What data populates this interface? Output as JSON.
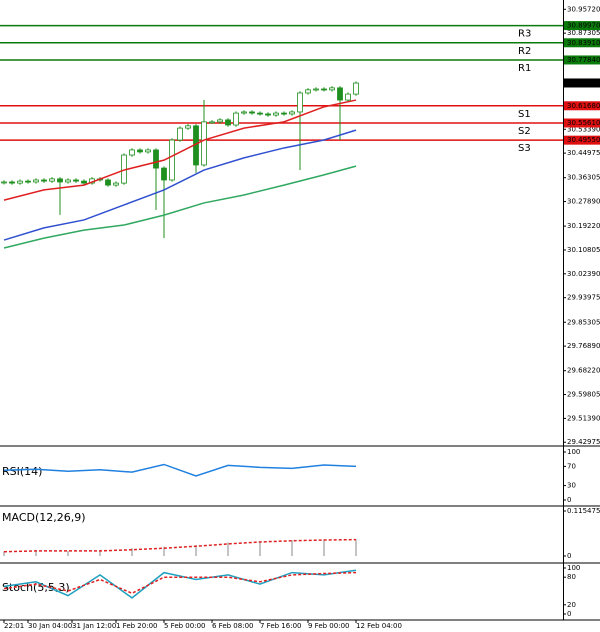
{
  "chart_data": [
    {
      "type": "candlestick",
      "xlim": [
        -0.5,
        69.875
      ],
      "ylim": [
        29.42,
        30.99
      ],
      "xticks": [
        {
          "value": 0,
          "label": "22:01"
        },
        {
          "value": 3,
          "label": "30 Jan 04:00"
        },
        {
          "value": 8.5,
          "label": "31 Jan 12:00"
        },
        {
          "value": 14,
          "label": "1 Feb 20:00"
        },
        {
          "value": 20,
          "label": "5 Feb 00:00"
        },
        {
          "value": 26,
          "label": "6 Feb 08:00"
        },
        {
          "value": 32,
          "label": "7 Feb 16:00"
        },
        {
          "value": 38,
          "label": "9 Feb 00:00"
        },
        {
          "value": 44,
          "label": "12 Feb 04:00"
        }
      ],
      "yticks": [
        {
          "value": 30.9572,
          "label": "30.95720"
        },
        30.87305,
        {
          "value": 30.5339,
          "label": "30.53390"
        },
        30.44975,
        30.36305,
        {
          "value": 30.2789,
          "label": "30.27890"
        },
        {
          "value": 30.1922,
          "label": "30.19220"
        },
        30.10805,
        {
          "value": 30.0239,
          "label": "30.02390"
        },
        29.93975,
        29.85305,
        {
          "value": 29.7689,
          "label": "29.76890"
        },
        {
          "value": 29.6822,
          "label": "29.68220"
        },
        29.59805,
        {
          "value": 29.5139,
          "label": "29.51390"
        },
        29.42975
      ],
      "colors": {
        "up": "#ffffff",
        "down": "#1f8f1f",
        "wick": "#1f8f1f"
      },
      "open": [
        30.345,
        30.348,
        30.344,
        30.351,
        30.348,
        30.355,
        30.351,
        30.359,
        30.348,
        30.355,
        30.351,
        30.344,
        30.359,
        30.355,
        30.337,
        30.344,
        30.443,
        30.461,
        30.454,
        30.461,
        30.397,
        30.355,
        30.496,
        30.538,
        30.546,
        30.408,
        30.56,
        30.56,
        30.567,
        30.549,
        30.591,
        30.595,
        30.591,
        30.588,
        30.584,
        30.591,
        30.588,
        30.595,
        30.662,
        30.673,
        30.676,
        30.673,
        30.68,
        30.637,
        30.658
      ],
      "high": [
        30.354,
        30.354,
        30.357,
        30.357,
        30.361,
        30.361,
        30.365,
        30.365,
        30.361,
        30.361,
        30.357,
        30.365,
        30.365,
        30.361,
        30.35,
        30.449,
        30.467,
        30.467,
        30.467,
        30.467,
        30.403,
        30.502,
        30.544,
        30.552,
        30.552,
        30.637,
        30.566,
        30.573,
        30.573,
        30.597,
        30.601,
        30.601,
        30.597,
        30.594,
        30.597,
        30.597,
        30.601,
        30.668,
        30.679,
        30.682,
        30.682,
        30.686,
        30.686,
        30.664,
        30.703
      ],
      "low": [
        30.339,
        30.338,
        30.338,
        30.342,
        30.342,
        30.345,
        30.345,
        30.232,
        30.342,
        30.345,
        30.338,
        30.338,
        30.349,
        30.331,
        30.331,
        30.338,
        30.437,
        30.448,
        30.448,
        30.249,
        30.15,
        30.349,
        30.49,
        30.532,
        30.38,
        30.402,
        30.554,
        30.554,
        30.543,
        30.543,
        30.585,
        30.585,
        30.582,
        30.578,
        30.578,
        30.582,
        30.582,
        30.39,
        30.656,
        30.667,
        30.667,
        30.667,
        30.496,
        30.631,
        30.652
      ],
      "close": [
        30.348,
        30.344,
        30.351,
        30.348,
        30.355,
        30.351,
        30.359,
        30.348,
        30.355,
        30.351,
        30.344,
        30.359,
        30.355,
        30.337,
        30.344,
        30.443,
        30.461,
        30.454,
        30.461,
        30.397,
        30.355,
        30.496,
        30.538,
        30.546,
        30.408,
        30.56,
        30.56,
        30.567,
        30.549,
        30.591,
        30.595,
        30.591,
        30.588,
        30.584,
        30.591,
        30.588,
        30.595,
        30.662,
        30.673,
        30.676,
        30.673,
        30.68,
        30.637,
        30.658,
        30.697
      ],
      "series": [
        {
          "color": "#e02020",
          "x": [
            0,
            5,
            10,
            15,
            20,
            25,
            30,
            35,
            40,
            44
          ],
          "values": [
            30.284,
            30.32,
            30.337,
            30.39,
            30.425,
            30.496,
            30.538,
            30.56,
            30.613,
            30.637
          ]
        },
        {
          "color": "#3050d0",
          "x": [
            0,
            5,
            10,
            15,
            20,
            25,
            30,
            35,
            40,
            44
          ],
          "values": [
            30.143,
            30.186,
            30.214,
            30.267,
            30.32,
            30.39,
            30.433,
            30.468,
            30.496,
            30.531
          ]
        },
        {
          "color": "#30a860",
          "x": [
            0,
            5,
            10,
            15,
            20,
            25,
            30,
            35,
            40,
            44
          ],
          "values": [
            30.115,
            30.15,
            30.178,
            30.196,
            30.231,
            30.274,
            30.302,
            30.337,
            30.373,
            30.404
          ]
        }
      ],
      "levels": [
        {
          "name": "R3",
          "value": 30.8997,
          "label": "30.89970",
          "color": "#0a7a0a"
        },
        {
          "name": "R2",
          "value": 30.8391,
          "label": "30.83910",
          "color": "#0a7a0a"
        },
        {
          "name": "R1",
          "value": 30.7784,
          "label": "30.77840",
          "color": "#0a7a0a"
        },
        {
          "name": "S1",
          "value": 30.6168,
          "label": "30.61680",
          "color": "#e01010"
        },
        {
          "name": "S2",
          "value": 30.5561,
          "label": "30.55610",
          "color": "#e01010"
        },
        {
          "name": "S3",
          "value": 30.4955,
          "label": "30.49550",
          "color": "#e01010"
        }
      ],
      "last_price": {
        "value": 30.69724,
        "label": "30.69724"
      }
    },
    {
      "type": "line",
      "title": "RSI(14)",
      "xlim": [
        -0.5,
        69.875
      ],
      "ylim": [
        -10.4,
        110.4
      ],
      "yticks": [
        100,
        70,
        30,
        0
      ],
      "series": [
        {
          "color": "#2080e0",
          "x": [
            0,
            4,
            8,
            12,
            16,
            20,
            24,
            28,
            32,
            36,
            40,
            44
          ],
          "values": [
            62,
            64,
            60,
            63,
            58,
            74,
            50,
            72,
            68,
            66,
            73,
            70
          ]
        }
      ]
    },
    {
      "type": "line",
      "title": "MACD(12,26,9)",
      "xlim": [
        -0.5,
        69.875
      ],
      "ylim": [
        -0.0154,
        0.1257
      ],
      "yticks": [
        0.115475,
        0
      ],
      "series": [
        {
          "type": "bar",
          "color": "#b0b0b0",
          "x": [
            0,
            4,
            8,
            12,
            16,
            20,
            24,
            28,
            32,
            36,
            40,
            44
          ],
          "values": [
            0.012,
            0.014,
            0.013,
            0.012,
            0.02,
            0.024,
            0.028,
            0.035,
            0.038,
            0.04,
            0.042,
            0.042
          ]
        },
        {
          "color": "#e02020",
          "dashed": true,
          "x": [
            0,
            4,
            8,
            12,
            16,
            20,
            24,
            28,
            32,
            36,
            40,
            44
          ],
          "values": [
            0.011,
            0.013,
            0.013,
            0.013,
            0.016,
            0.02,
            0.025,
            0.031,
            0.036,
            0.039,
            0.041,
            0.042
          ]
        }
      ]
    },
    {
      "type": "line",
      "title": "Stoch(5,5,3)",
      "xlim": [
        -0.5,
        69.875
      ],
      "ylim": [
        -10.9,
        108.7
      ],
      "yticks": [
        100,
        80,
        20,
        0
      ],
      "series": [
        {
          "color": "#20a0c0",
          "x": [
            0,
            4,
            8,
            12,
            16,
            20,
            24,
            28,
            32,
            36,
            40,
            44
          ],
          "values": [
            60,
            70,
            40,
            85,
            35,
            90,
            75,
            85,
            65,
            90,
            85,
            95
          ]
        },
        {
          "color": "#e02020",
          "dashed": true,
          "x": [
            0,
            4,
            8,
            12,
            16,
            20,
            24,
            28,
            32,
            36,
            40,
            44
          ],
          "values": [
            55,
            65,
            50,
            75,
            45,
            80,
            80,
            80,
            70,
            85,
            88,
            90
          ]
        }
      ]
    }
  ]
}
